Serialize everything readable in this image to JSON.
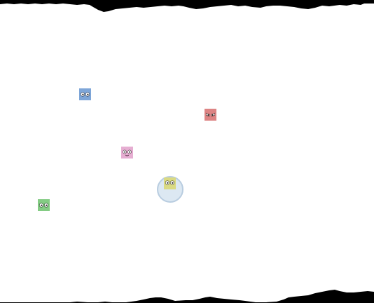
{
  "scene": {
    "background_color": "#ffffff",
    "terrain_color": "#000000"
  },
  "characters": [
    {
      "id": "blue",
      "icon": "blue-block-face-icon",
      "color": "#7ea6d8",
      "expression": "neutral"
    },
    {
      "id": "red",
      "icon": "red-block-angry-icon",
      "color": "#dd8484",
      "expression": "angry"
    },
    {
      "id": "pink",
      "icon": "pink-block-face-icon",
      "color": "#e6aed2",
      "expression": "smile"
    },
    {
      "id": "green",
      "icon": "green-block-face-icon",
      "color": "#84cc84",
      "expression": "neutral"
    },
    {
      "id": "yellow",
      "icon": "yellow-block-player-icon",
      "color": "#dada82",
      "expression": "neutral",
      "in_bubble": true
    }
  ]
}
